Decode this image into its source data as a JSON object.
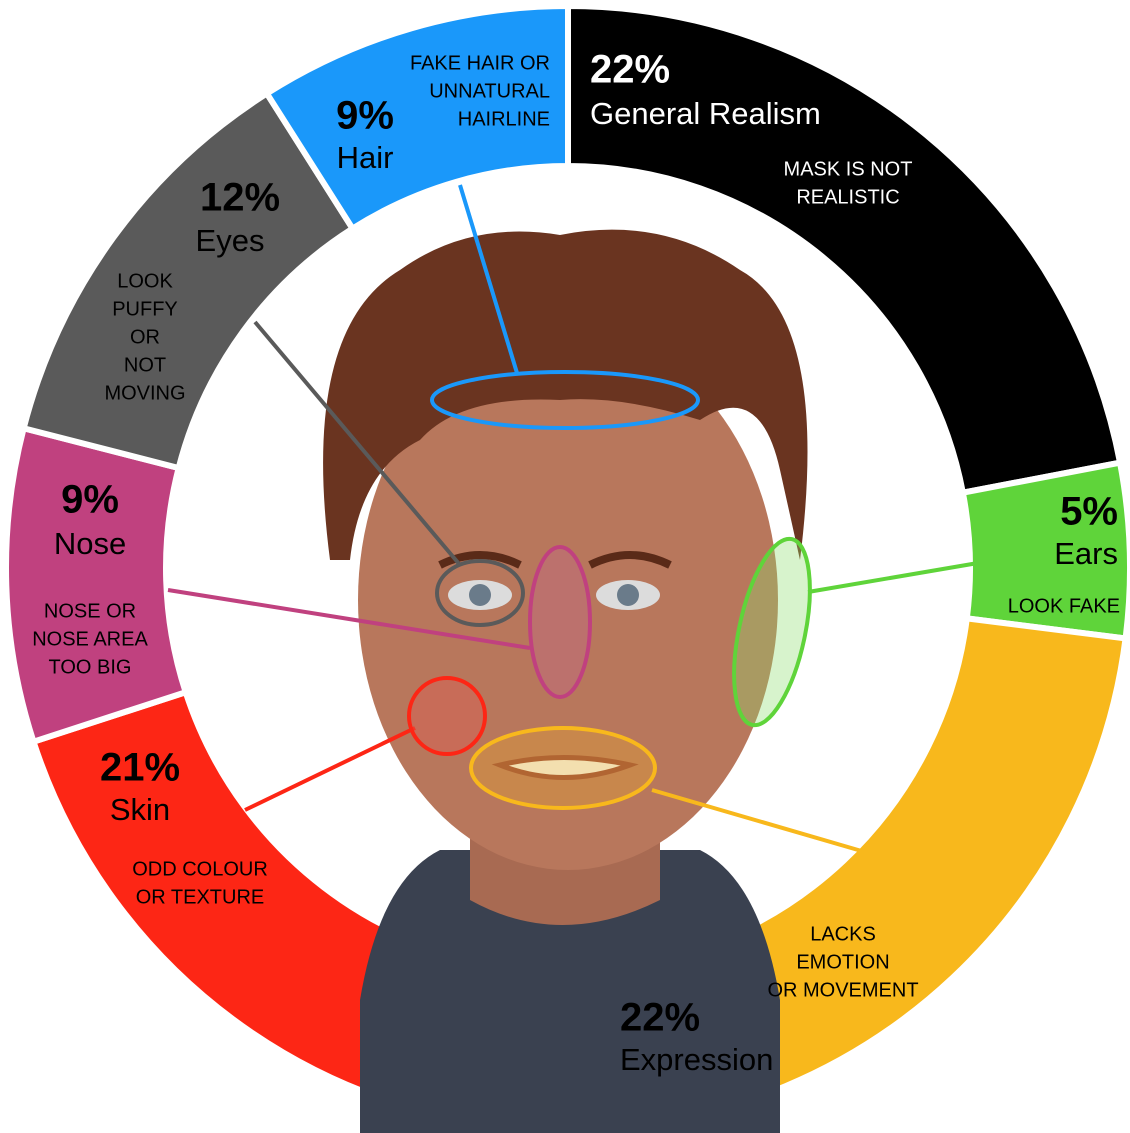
{
  "chart_data": {
    "type": "donut",
    "categories": [
      "General Realism",
      "Ears",
      "Expression",
      "Skin",
      "Nose",
      "Eyes",
      "Hair"
    ],
    "values": [
      22,
      5,
      22,
      21,
      9,
      12,
      9
    ],
    "value_labels": [
      "22%",
      "5%",
      "22%",
      "21%",
      "9%",
      "12%",
      "9%"
    ],
    "colors": [
      "#000000",
      "#5fd43a",
      "#f8b81c",
      "#fd2615",
      "#c0417f",
      "#5a5a5a",
      "#1a98fa"
    ],
    "notes": [
      [
        "MASK IS NOT",
        "REALISTIC"
      ],
      [
        "LOOK FAKE"
      ],
      [
        "LACKS",
        "EMOTION",
        "OR MOVEMENT"
      ],
      [
        "ODD COLOUR",
        "OR TEXTURE"
      ],
      [
        "NOSE OR",
        "NOSE AREA",
        "TOO BIG"
      ],
      [
        "LOOK",
        "PUFFY",
        "OR",
        "NOT",
        "MOVING"
      ],
      [
        "FAKE HAIR OR",
        "UNNATURAL",
        "HAIRLINE"
      ]
    ]
  }
}
